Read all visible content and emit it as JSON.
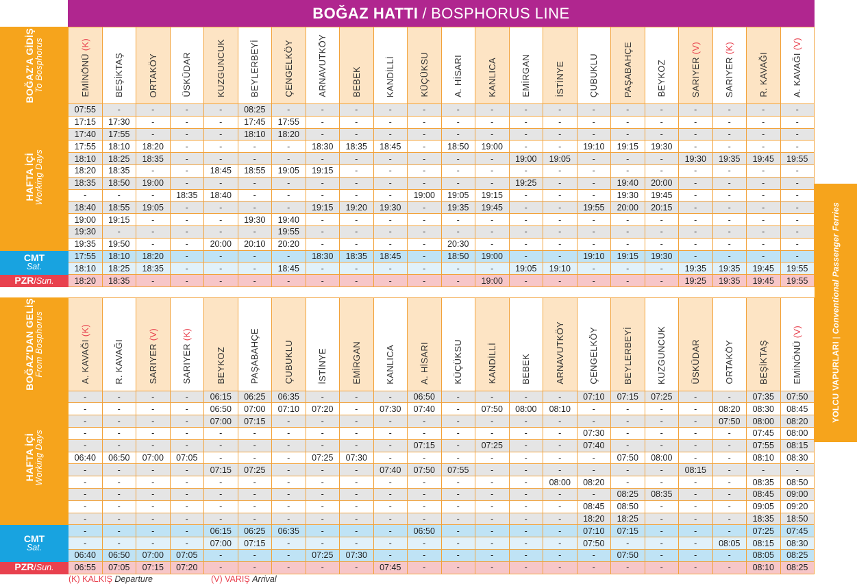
{
  "banner": {
    "tr": "BOĞAZ HATTI",
    "sep": "/",
    "en": "BOSPHORUS LINE"
  },
  "sidebar": {
    "tr": "YOLCU VAPURLARI",
    "sep": " | ",
    "en": "Conventional Passenger Ferries"
  },
  "legend": {
    "k_code": "(K) KALKIŞ",
    "k_label": "Departure",
    "v_code": "(V) VARIŞ",
    "v_label": "Arrival"
  },
  "colors": {
    "banner": "#b0268f",
    "orange": "#f6a41c",
    "saturday": "#18a3e0",
    "sunday": "#e8414e",
    "gray_row": "#e5e5e5",
    "alt_header": "#fde4c4"
  },
  "to_bosphorus": {
    "title_tr": "BOĞAZ'A GİDİŞ",
    "title_en": "To Bosphorus",
    "labels": {
      "weekday_tr": "HAFTA İÇİ",
      "weekday_en": "Working Days",
      "sat_tr": "CMT",
      "sat_en": "Sat.",
      "sun_tr": "PZR",
      "sun_en": "Sun."
    },
    "stations": [
      {
        "name": "EMİNÖNÜ",
        "tag": "(K)"
      },
      {
        "name": "BEŞİKTAŞ",
        "tag": ""
      },
      {
        "name": "ORTAKÖY",
        "tag": ""
      },
      {
        "name": "ÜSKÜDAR",
        "tag": ""
      },
      {
        "name": "KUZGUNCUK",
        "tag": ""
      },
      {
        "name": "BEYLERBEYİ",
        "tag": ""
      },
      {
        "name": "ÇENGELKÖY",
        "tag": ""
      },
      {
        "name": "ARNAVUTKÖY",
        "tag": ""
      },
      {
        "name": "BEBEK",
        "tag": ""
      },
      {
        "name": "KANDİLLİ",
        "tag": ""
      },
      {
        "name": "KÜÇÜKSU",
        "tag": ""
      },
      {
        "name": "A. HİSARI",
        "tag": ""
      },
      {
        "name": "KANLICA",
        "tag": ""
      },
      {
        "name": "EMİRGAN",
        "tag": ""
      },
      {
        "name": "İSTİNYE",
        "tag": ""
      },
      {
        "name": "ÇUBUKLU",
        "tag": ""
      },
      {
        "name": "PAŞABAHÇE",
        "tag": ""
      },
      {
        "name": "BEYKOZ",
        "tag": ""
      },
      {
        "name": "SARIYER",
        "tag": "(V)"
      },
      {
        "name": "SARIYER",
        "tag": "(K)"
      },
      {
        "name": "R. KAVAĞI",
        "tag": ""
      },
      {
        "name": "A. KAVAĞI",
        "tag": "(V)"
      }
    ],
    "weekday": [
      [
        "07:55",
        "-",
        "-",
        "-",
        "-",
        "08:25",
        "-",
        "-",
        "-",
        "-",
        "-",
        "-",
        "-",
        "-",
        "-",
        "-",
        "-",
        "-",
        "-",
        "-",
        "-",
        "-"
      ],
      [
        "17:15",
        "17:30",
        "-",
        "-",
        "-",
        "17:45",
        "17:55",
        "-",
        "-",
        "-",
        "-",
        "-",
        "-",
        "-",
        "-",
        "-",
        "-",
        "-",
        "-",
        "-",
        "-",
        "-"
      ],
      [
        "17:40",
        "17:55",
        "-",
        "-",
        "-",
        "18:10",
        "18:20",
        "-",
        "-",
        "-",
        "-",
        "-",
        "-",
        "-",
        "-",
        "-",
        "-",
        "-",
        "-",
        "-",
        "-",
        "-"
      ],
      [
        "17:55",
        "18:10",
        "18:20",
        "-",
        "-",
        "-",
        "-",
        "18:30",
        "18:35",
        "18:45",
        "-",
        "18:50",
        "19:00",
        "-",
        "-",
        "19:10",
        "19:15",
        "19:30",
        "-",
        "-",
        "-",
        "-"
      ],
      [
        "18:10",
        "18:25",
        "18:35",
        "-",
        "-",
        "-",
        "-",
        "-",
        "-",
        "-",
        "-",
        "-",
        "-",
        "19:00",
        "19:05",
        "-",
        "-",
        "-",
        "19:30",
        "19:35",
        "19:45",
        "19:55"
      ],
      [
        "18:20",
        "18:35",
        "-",
        "-",
        "18:45",
        "18:55",
        "19:05",
        "19:15",
        "-",
        "-",
        "-",
        "-",
        "-",
        "-",
        "-",
        "-",
        "-",
        "-",
        "-",
        "-",
        "-",
        "-"
      ],
      [
        "18:35",
        "18:50",
        "19:00",
        "-",
        "-",
        "-",
        "-",
        "-",
        "-",
        "-",
        "-",
        "-",
        "-",
        "19:25",
        "-",
        "-",
        "19:40",
        "20:00",
        "-",
        "-",
        "-",
        "-"
      ],
      [
        "-",
        "-",
        "-",
        "18:35",
        "18:40",
        "-",
        "-",
        "-",
        "-",
        "-",
        "19:00",
        "19:05",
        "19:15",
        "-",
        "-",
        "-",
        "19:30",
        "19:45",
        "-",
        "-",
        "-",
        "-"
      ],
      [
        "18:40",
        "18:55",
        "19:05",
        "-",
        "-",
        "-",
        "-",
        "19:15",
        "19:20",
        "19:30",
        "-",
        "19:35",
        "19:45",
        "-",
        "-",
        "19:55",
        "20:00",
        "20:15",
        "-",
        "-",
        "-",
        "-"
      ],
      [
        "19:00",
        "19:15",
        "-",
        "-",
        "-",
        "19:30",
        "19:40",
        "-",
        "-",
        "-",
        "-",
        "-",
        "-",
        "-",
        "-",
        "-",
        "-",
        "-",
        "-",
        "-",
        "-",
        "-"
      ],
      [
        "19:30",
        "-",
        "-",
        "-",
        "-",
        "-",
        "19:55",
        "-",
        "-",
        "-",
        "-",
        "-",
        "-",
        "-",
        "-",
        "-",
        "-",
        "-",
        "-",
        "-",
        "-",
        "-"
      ],
      [
        "19:35",
        "19:50",
        "-",
        "-",
        "20:00",
        "20:10",
        "20:20",
        "-",
        "-",
        "-",
        "-",
        "20:30",
        "-",
        "-",
        "-",
        "-",
        "-",
        "-",
        "-",
        "-",
        "-",
        "-"
      ]
    ],
    "saturday": [
      [
        "17:55",
        "18:10",
        "18:20",
        "-",
        "-",
        "-",
        "-",
        "18:30",
        "18:35",
        "18:45",
        "-",
        "18:50",
        "19:00",
        "-",
        "-",
        "19:10",
        "19:15",
        "19:30",
        "-",
        "-",
        "-",
        "-"
      ],
      [
        "18:10",
        "18:25",
        "18:35",
        "-",
        "-",
        "-",
        "18:45",
        "-",
        "-",
        "-",
        "-",
        "-",
        "-",
        "19:05",
        "19:10",
        "-",
        "-",
        "-",
        "19:35",
        "19:35",
        "19:45",
        "19:55"
      ]
    ],
    "sunday": [
      [
        "18:20",
        "18:35",
        "-",
        "-",
        "-",
        "-",
        "-",
        "-",
        "-",
        "-",
        "-",
        "-",
        "19:00",
        "-",
        "-",
        "-",
        "-",
        "-",
        "19:25",
        "19:35",
        "19:45",
        "19:55"
      ]
    ]
  },
  "from_bosphorus": {
    "title_tr": "BOĞAZ'DAN GELİŞ",
    "title_en": "From Bosphorus",
    "labels": {
      "weekday_tr": "HAFTA İÇİ",
      "weekday_en": "Working Days",
      "sat_tr": "CMT",
      "sat_en": "Sat.",
      "sun_tr": "PZR",
      "sun_en": "Sun."
    },
    "stations": [
      {
        "name": "A. KAVAĞI",
        "tag": "(K)"
      },
      {
        "name": "R. KAVAĞI",
        "tag": ""
      },
      {
        "name": "SARIYER",
        "tag": "(V)"
      },
      {
        "name": "SARIYER",
        "tag": "(K)"
      },
      {
        "name": "BEYKOZ",
        "tag": ""
      },
      {
        "name": "PAŞABAHÇE",
        "tag": ""
      },
      {
        "name": "ÇUBUKLU",
        "tag": ""
      },
      {
        "name": "İSTİNYE",
        "tag": ""
      },
      {
        "name": "EMİRGAN",
        "tag": ""
      },
      {
        "name": "KANLICA",
        "tag": ""
      },
      {
        "name": "A. HİSARI",
        "tag": ""
      },
      {
        "name": "KÜÇÜKSU",
        "tag": ""
      },
      {
        "name": "KANDİLLİ",
        "tag": ""
      },
      {
        "name": "BEBEK",
        "tag": ""
      },
      {
        "name": "ARNAVUTKÖY",
        "tag": ""
      },
      {
        "name": "ÇENGELKÖY",
        "tag": ""
      },
      {
        "name": "BEYLERBEYİ",
        "tag": ""
      },
      {
        "name": "KUZGUNCUK",
        "tag": ""
      },
      {
        "name": "ÜSKÜDAR",
        "tag": ""
      },
      {
        "name": "ORTAKÖY",
        "tag": ""
      },
      {
        "name": "BEŞİKTAŞ",
        "tag": ""
      },
      {
        "name": "EMİNÖNÜ",
        "tag": "(V)"
      }
    ],
    "weekday": [
      [
        "-",
        "-",
        "-",
        "-",
        "06:15",
        "06:25",
        "06:35",
        "-",
        "-",
        "-",
        "06:50",
        "-",
        "-",
        "-",
        "-",
        "07:10",
        "07:15",
        "07:25",
        "-",
        "-",
        "07:35",
        "07:50"
      ],
      [
        "-",
        "-",
        "-",
        "-",
        "06:50",
        "07:00",
        "07:10",
        "07:20",
        "-",
        "07:30",
        "07:40",
        "-",
        "07:50",
        "08:00",
        "08:10",
        "-",
        "-",
        "-",
        "-",
        "08:20",
        "08:30",
        "08:45"
      ],
      [
        "-",
        "-",
        "-",
        "-",
        "07:00",
        "07:15",
        "-",
        "-",
        "-",
        "-",
        "-",
        "-",
        "-",
        "-",
        "-",
        "-",
        "-",
        "-",
        "-",
        "07:50",
        "08:00",
        "08:20"
      ],
      [
        "-",
        "-",
        "-",
        "-",
        "-",
        "-",
        "-",
        "-",
        "-",
        "-",
        "-",
        "-",
        "-",
        "-",
        "-",
        "07:30",
        "-",
        "-",
        "-",
        "-",
        "07:45",
        "08:00"
      ],
      [
        "-",
        "-",
        "-",
        "-",
        "-",
        "-",
        "-",
        "-",
        "-",
        "-",
        "07:15",
        "-",
        "07:25",
        "-",
        "-",
        "07:40",
        "-",
        "-",
        "-",
        "-",
        "07:55",
        "08:15"
      ],
      [
        "06:40",
        "06:50",
        "07:00",
        "07:05",
        "-",
        "-",
        "-",
        "07:25",
        "07:30",
        "-",
        "-",
        "-",
        "-",
        "-",
        "-",
        "-",
        "07:50",
        "08:00",
        "-",
        "-",
        "08:10",
        "08:30"
      ],
      [
        "-",
        "-",
        "-",
        "-",
        "07:15",
        "07:25",
        "-",
        "-",
        "-",
        "07:40",
        "07:50",
        "07:55",
        "-",
        "-",
        "-",
        "-",
        "-",
        "-",
        "08:15",
        "-",
        "-",
        "-"
      ],
      [
        "-",
        "-",
        "-",
        "-",
        "-",
        "-",
        "-",
        "-",
        "-",
        "-",
        "-",
        "-",
        "-",
        "-",
        "08:00",
        "08:20",
        "-",
        "-",
        "-",
        "-",
        "08:35",
        "08:50"
      ],
      [
        "-",
        "-",
        "-",
        "-",
        "-",
        "-",
        "-",
        "-",
        "-",
        "-",
        "-",
        "-",
        "-",
        "-",
        "-",
        "-",
        "08:25",
        "08:35",
        "-",
        "-",
        "08:45",
        "09:00"
      ],
      [
        "-",
        "-",
        "-",
        "-",
        "-",
        "-",
        "-",
        "-",
        "-",
        "-",
        "-",
        "-",
        "-",
        "-",
        "-",
        "08:45",
        "08:50",
        "-",
        "-",
        "-",
        "09:05",
        "09:20"
      ],
      [
        "-",
        "-",
        "-",
        "-",
        "-",
        "-",
        "-",
        "-",
        "-",
        "-",
        "-",
        "-",
        "-",
        "-",
        "-",
        "18:20",
        "18:25",
        "-",
        "-",
        "-",
        "18:35",
        "18:50"
      ]
    ],
    "saturday": [
      [
        "-",
        "-",
        "-",
        "-",
        "06:15",
        "06:25",
        "06:35",
        "-",
        "-",
        "-",
        "06:50",
        "-",
        "-",
        "-",
        "-",
        "07:10",
        "07:15",
        "-",
        "-",
        "-",
        "07:25",
        "07:45"
      ],
      [
        "-",
        "-",
        "-",
        "-",
        "07:00",
        "07:15",
        "-",
        "-",
        "-",
        "-",
        "-",
        "-",
        "-",
        "-",
        "-",
        "07:50",
        "-",
        "-",
        "-",
        "08:05",
        "08:15",
        "08:30"
      ],
      [
        "06:40",
        "06:50",
        "07:00",
        "07:05",
        "-",
        "-",
        "-",
        "07:25",
        "07:30",
        "-",
        "-",
        "-",
        "-",
        "-",
        "-",
        "-",
        "07:50",
        "-",
        "-",
        "-",
        "08:05",
        "08:25"
      ]
    ],
    "sunday": [
      [
        "06:55",
        "07:05",
        "07:15",
        "07:20",
        "-",
        "-",
        "-",
        "-",
        "-",
        "07:45",
        "-",
        "-",
        "-",
        "-",
        "-",
        "-",
        "-",
        "-",
        "-",
        "-",
        "08:10",
        "08:25"
      ]
    ]
  }
}
